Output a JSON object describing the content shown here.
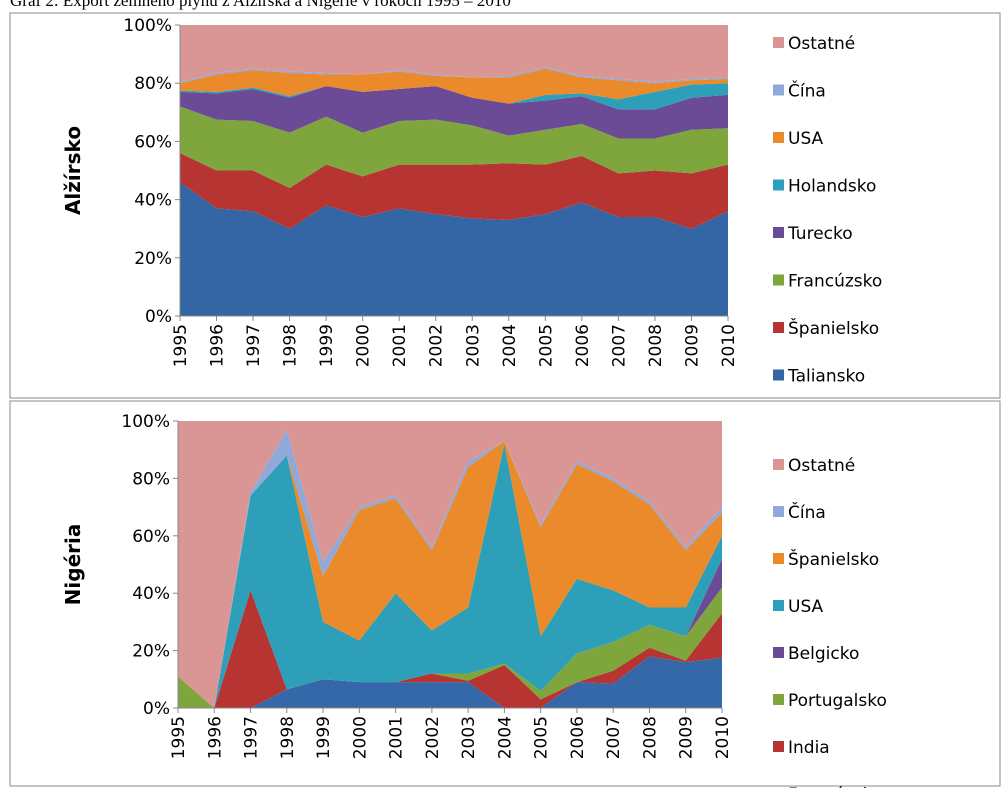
{
  "title": "Graf 2: Export zemného plynu z Alžírska a Nigérie v rokoch 1995 – 2010",
  "chart_data": [
    {
      "type": "stacked_area",
      "ylabel": "Alžírsko",
      "categories": [
        "1995",
        "1996",
        "1997",
        "1998",
        "1999",
        "2000",
        "2001",
        "2002",
        "2003",
        "2004",
        "2005",
        "2006",
        "2007",
        "2008",
        "2009",
        "2010"
      ],
      "ylim": [
        0,
        100
      ],
      "yticks": [
        {
          "value": 0,
          "label": "0%"
        },
        {
          "value": 20,
          "label": "20%"
        },
        {
          "value": 40,
          "label": "40%"
        },
        {
          "value": 60,
          "label": "60%"
        },
        {
          "value": 80,
          "label": "80%"
        },
        {
          "value": 100,
          "label": "100%"
        }
      ],
      "series": [
        {
          "name": "Taliansko",
          "color": "#3465a4",
          "values": [
            46,
            37,
            36,
            30,
            38,
            34,
            37,
            35,
            33.5,
            33,
            35,
            39,
            34,
            34,
            30,
            36
          ]
        },
        {
          "name": "Španielsko",
          "color": "#b63431",
          "values": [
            10,
            13,
            14,
            14,
            14,
            14,
            15,
            17,
            18.5,
            19.5,
            17,
            16,
            15,
            16,
            19,
            16
          ]
        },
        {
          "name": "Francúzsko",
          "color": "#7ea63c",
          "values": [
            16,
            17.5,
            17,
            19,
            16.5,
            15,
            15,
            15.5,
            13.5,
            9.5,
            12,
            11,
            12,
            11,
            15,
            12.5
          ]
        },
        {
          "name": "Turecko",
          "color": "#6b4a96",
          "values": [
            5,
            9,
            11,
            12,
            10.5,
            14,
            11,
            11.5,
            9.5,
            11,
            10,
            9.5,
            10,
            10,
            11,
            11.5
          ]
        },
        {
          "name": "Holandsko",
          "color": "#2d9fb8",
          "values": [
            0.5,
            0.5,
            0.5,
            0.5,
            0,
            0,
            0,
            0,
            0,
            0,
            2,
            1,
            3.5,
            6,
            4.5,
            4
          ]
        },
        {
          "name": "USA",
          "color": "#ea8a2a",
          "values": [
            2.5,
            6,
            6,
            8,
            4,
            6,
            6,
            3.5,
            7,
            9,
            9,
            5.5,
            6.5,
            3,
            1.5,
            1.5
          ]
        },
        {
          "name": "Čína",
          "color": "#91a9d9",
          "values": [
            0.5,
            0.5,
            0.5,
            0.5,
            0.5,
            0,
            0.5,
            0.5,
            0,
            0.5,
            0.5,
            0.5,
            0.5,
            0.5,
            0.5,
            0.5
          ]
        },
        {
          "name": "Ostatné",
          "color": "#d99694",
          "values": [
            19.5,
            16.5,
            15,
            16,
            16.5,
            17,
            15.5,
            17,
            18,
            17.5,
            14.5,
            17.5,
            18.5,
            19.5,
            18.5,
            18
          ]
        }
      ]
    },
    {
      "type": "stacked_area",
      "ylabel": "Nigéria",
      "categories": [
        "1995",
        "1996",
        "1997",
        "1998",
        "1999",
        "2000",
        "2001",
        "2002",
        "2003",
        "2004",
        "2005",
        "2006",
        "2007",
        "2008",
        "2009",
        "2010"
      ],
      "ylim": [
        0,
        100
      ],
      "yticks": [
        {
          "value": 0,
          "label": "0%"
        },
        {
          "value": 20,
          "label": "20%"
        },
        {
          "value": 40,
          "label": "40%"
        },
        {
          "value": 60,
          "label": "60%"
        },
        {
          "value": 80,
          "label": "80%"
        },
        {
          "value": 100,
          "label": "100%"
        }
      ],
      "series": [
        {
          "name": "Francúzsko",
          "color": "#3568a8",
          "values": [
            0,
            0,
            0,
            6.5,
            10,
            9,
            9,
            9,
            9,
            0,
            0,
            9,
            8.5,
            18,
            16,
            17.5
          ]
        },
        {
          "name": "India",
          "color": "#b63431",
          "values": [
            0,
            0,
            41,
            0,
            0,
            0,
            0,
            3,
            0.5,
            15,
            3,
            0,
            4.5,
            3,
            0.5,
            15.5
          ]
        },
        {
          "name": "Portugalsko",
          "color": "#7ea63c",
          "values": [
            11,
            0,
            0,
            0,
            0,
            0,
            0,
            0,
            2.5,
            0.5,
            3,
            10,
            10,
            8,
            8.5,
            9
          ]
        },
        {
          "name": "Belgicko",
          "color": "#6b4a96",
          "values": [
            0,
            0,
            0,
            0,
            0,
            0,
            0,
            0,
            0,
            0,
            0,
            0,
            0,
            0,
            0,
            10
          ]
        },
        {
          "name": "USA",
          "color": "#2d9fb8",
          "values": [
            0,
            0,
            33,
            81.5,
            20,
            14.5,
            31,
            15,
            23,
            76.5,
            19,
            26,
            18,
            6,
            10,
            8
          ]
        },
        {
          "name": "Španielsko",
          "color": "#ea8a2a",
          "values": [
            0,
            0,
            0,
            0,
            16,
            45.5,
            33,
            28,
            49,
            1,
            38,
            40,
            38,
            36,
            20,
            8
          ]
        },
        {
          "name": "Čína",
          "color": "#91a9d9",
          "values": [
            0,
            0,
            1,
            9,
            5,
            1,
            1,
            1,
            2,
            0,
            1,
            1,
            1,
            1,
            1,
            2
          ]
        },
        {
          "name": "Ostatné",
          "color": "#d99694",
          "values": [
            89,
            100,
            25,
            3,
            49,
            30,
            26,
            44,
            14,
            7,
            36,
            14,
            20,
            28,
            44,
            30
          ]
        }
      ]
    }
  ]
}
